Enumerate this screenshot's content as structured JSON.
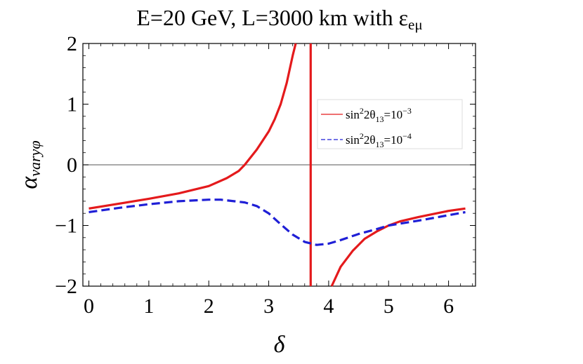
{
  "chart_data": {
    "type": "line",
    "title": "E=20 GeV, L=3000 km with ε",
    "title_subscript": "eμ",
    "xlabel": "δ",
    "ylabel": "α",
    "ylabel_subscript": "varyφ",
    "xlim": [
      -0.1,
      6.45
    ],
    "ylim": [
      -2,
      2
    ],
    "xticks": [
      "0",
      "1",
      "2",
      "3",
      "4",
      "5",
      "6"
    ],
    "yticks": [
      "2",
      "1",
      "0",
      "−1",
      "−2"
    ],
    "legend_position": "top-right",
    "series": [
      {
        "name": "sin²2θ₁₃=10⁻³",
        "legend_base": "sin",
        "legend_sup1": "2",
        "legend_mid": "2θ",
        "legend_sub": "13",
        "legend_eq": "=10",
        "legend_sup2": "−3",
        "color": "#e41a1c",
        "style": "solid",
        "segments": [
          [
            [
              0,
              -0.72
            ],
            [
              0.5,
              -0.64
            ],
            [
              1.0,
              -0.56
            ],
            [
              1.5,
              -0.47
            ],
            [
              2.0,
              -0.35
            ],
            [
              2.3,
              -0.22
            ],
            [
              2.5,
              -0.1
            ],
            [
              2.6,
              0.0
            ],
            [
              2.8,
              0.25
            ],
            [
              3.0,
              0.55
            ],
            [
              3.1,
              0.75
            ],
            [
              3.2,
              1.0
            ],
            [
              3.3,
              1.35
            ],
            [
              3.4,
              1.8
            ],
            [
              3.45,
              2.0
            ]
          ],
          [
            [
              3.7,
              -2.0
            ],
            [
              3.7,
              2.0
            ]
          ],
          [
            [
              4.05,
              -2.0
            ],
            [
              4.2,
              -1.68
            ],
            [
              4.4,
              -1.42
            ],
            [
              4.6,
              -1.22
            ],
            [
              4.8,
              -1.1
            ],
            [
              5.0,
              -1.0
            ],
            [
              5.2,
              -0.93
            ],
            [
              5.5,
              -0.86
            ],
            [
              5.8,
              -0.8
            ],
            [
              6.0,
              -0.76
            ],
            [
              6.28,
              -0.72
            ]
          ]
        ]
      },
      {
        "name": "sin²2θ₁₃=10⁻⁴",
        "legend_base": "sin",
        "legend_sup1": "2",
        "legend_mid": "2θ",
        "legend_sub": "13",
        "legend_eq": "=10",
        "legend_sup2": "−4",
        "color": "#1f1fd6",
        "style": "dashed",
        "segments": [
          [
            [
              0,
              -0.78
            ],
            [
              0.5,
              -0.71
            ],
            [
              1.0,
              -0.65
            ],
            [
              1.5,
              -0.6
            ],
            [
              2.0,
              -0.575
            ],
            [
              2.2,
              -0.575
            ],
            [
              2.6,
              -0.62
            ],
            [
              2.8,
              -0.68
            ],
            [
              3.0,
              -0.8
            ],
            [
              3.2,
              -0.98
            ],
            [
              3.4,
              -1.15
            ],
            [
              3.6,
              -1.27
            ],
            [
              3.8,
              -1.32
            ],
            [
              4.0,
              -1.3
            ],
            [
              4.2,
              -1.24
            ],
            [
              4.5,
              -1.14
            ],
            [
              4.8,
              -1.06
            ],
            [
              5.0,
              -1.0
            ],
            [
              5.5,
              -0.92
            ],
            [
              6.0,
              -0.83
            ],
            [
              6.28,
              -0.78
            ]
          ]
        ]
      }
    ]
  }
}
